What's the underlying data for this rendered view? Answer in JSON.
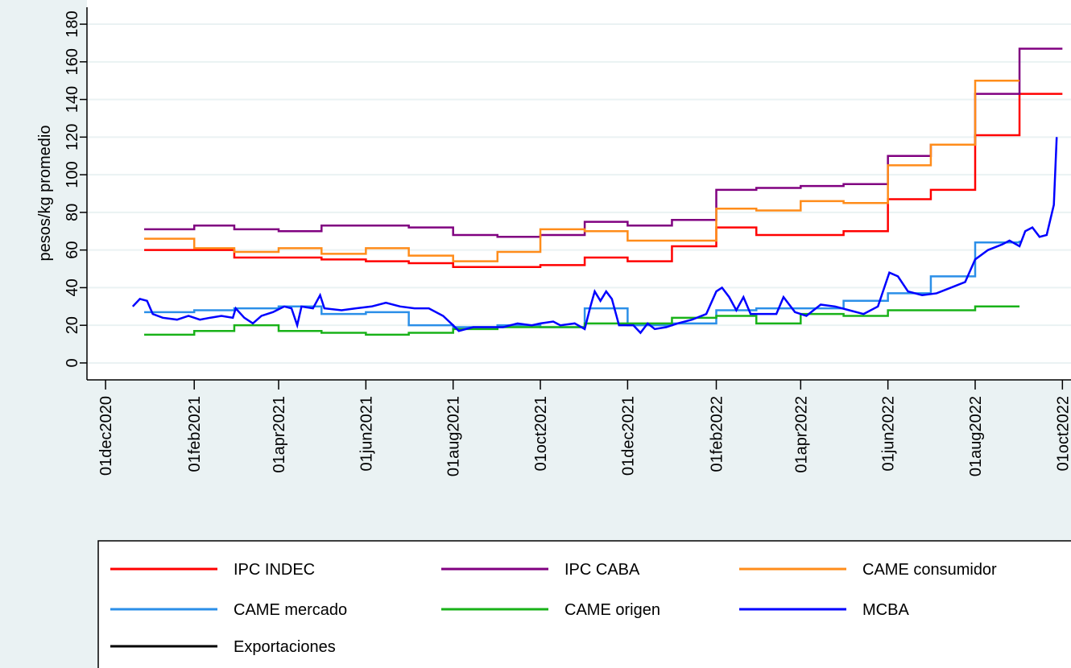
{
  "chart_data": {
    "type": "line",
    "y_label": "pesos/kg promedio",
    "xlim": [
      "2020-11-18",
      "2022-10-07"
    ],
    "xticks": [
      {
        "value": "2020-12-01",
        "label": "01dec2020"
      },
      {
        "value": "2021-02-01",
        "label": "01feb2021"
      },
      {
        "value": "2021-04-01",
        "label": "01apr2021"
      },
      {
        "value": "2021-06-01",
        "label": "01jun2021"
      },
      {
        "value": "2021-08-01",
        "label": "01aug2021"
      },
      {
        "value": "2021-10-01",
        "label": "01oct2021"
      },
      {
        "value": "2021-12-01",
        "label": "01dec2021"
      },
      {
        "value": "2022-02-01",
        "label": "01feb2022"
      },
      {
        "value": "2022-04-01",
        "label": "01apr2022"
      },
      {
        "value": "2022-06-01",
        "label": "01jun2022"
      },
      {
        "value": "2022-08-01",
        "label": "01aug2022"
      },
      {
        "value": "2022-10-01",
        "label": "01oct2022"
      }
    ],
    "ylim": [
      -9,
      189
    ],
    "yticks": [
      0,
      20,
      40,
      60,
      80,
      100,
      120,
      140,
      160,
      180
    ],
    "grid": true,
    "series": [
      {
        "name": "IPC INDEC",
        "color": "#ff0000",
        "step": true,
        "x": [
          "2020-12-28",
          "2021-03-01",
          "2021-04-01",
          "2021-05-01",
          "2021-06-01",
          "2021-07-01",
          "2021-08-01",
          "2021-09-01",
          "2021-10-01",
          "2021-11-01",
          "2021-12-01",
          "2022-01-01",
          "2022-02-01",
          "2022-03-01",
          "2022-04-01",
          "2022-05-01",
          "2022-06-01",
          "2022-07-01",
          "2022-08-01",
          "2022-09-01",
          "2022-10-01"
        ],
        "values": [
          60,
          56,
          56,
          55,
          54,
          53,
          51,
          51,
          52,
          56,
          54,
          62,
          72,
          68,
          68,
          70,
          87,
          92,
          121,
          143,
          143
        ]
      },
      {
        "name": "IPC CABA",
        "color": "#800080",
        "step": true,
        "x": [
          "2020-12-28",
          "2021-02-01",
          "2021-03-01",
          "2021-04-01",
          "2021-05-01",
          "2021-07-01",
          "2021-08-01",
          "2021-09-01",
          "2021-10-01",
          "2021-11-01",
          "2021-12-01",
          "2022-01-01",
          "2022-02-01",
          "2022-03-01",
          "2022-04-01",
          "2022-05-01",
          "2022-06-01",
          "2022-07-01",
          "2022-08-01",
          "2022-09-01",
          "2022-10-01"
        ],
        "values": [
          71,
          73,
          71,
          70,
          73,
          72,
          68,
          67,
          68,
          75,
          73,
          76,
          92,
          93,
          94,
          95,
          110,
          116,
          143,
          167,
          167
        ]
      },
      {
        "name": "CAME consumidor",
        "color": "#ff8c1a",
        "step": true,
        "x": [
          "2020-12-28",
          "2021-02-01",
          "2021-03-01",
          "2021-04-01",
          "2021-05-01",
          "2021-06-01",
          "2021-07-01",
          "2021-08-01",
          "2021-09-01",
          "2021-10-01",
          "2021-11-01",
          "2021-12-01",
          "2022-02-01",
          "2022-03-01",
          "2022-04-01",
          "2022-05-01",
          "2022-06-01",
          "2022-07-01",
          "2022-08-01",
          "2022-09-01"
        ],
        "values": [
          66,
          61,
          59,
          61,
          58,
          61,
          57,
          54,
          59,
          71,
          70,
          65,
          82,
          81,
          86,
          85,
          105,
          116,
          150,
          150
        ]
      },
      {
        "name": "CAME mercado",
        "color": "#2b8fe8",
        "step": true,
        "x": [
          "2020-12-28",
          "2021-02-01",
          "2021-03-01",
          "2021-04-01",
          "2021-05-01",
          "2021-06-01",
          "2021-07-01",
          "2021-08-01",
          "2021-09-01",
          "2021-10-01",
          "2021-11-01",
          "2021-12-01",
          "2022-01-01",
          "2022-02-01",
          "2022-03-01",
          "2022-04-01",
          "2022-05-01",
          "2022-06-01",
          "2022-07-01",
          "2022-08-01",
          "2022-09-01"
        ],
        "values": [
          27,
          28,
          29,
          30,
          26,
          27,
          20,
          19,
          20,
          19,
          29,
          20,
          21,
          28,
          29,
          29,
          33,
          37,
          46,
          64,
          65
        ]
      },
      {
        "name": "CAME origen",
        "color": "#19b219",
        "step": true,
        "x": [
          "2020-12-28",
          "2021-02-01",
          "2021-03-01",
          "2021-04-01",
          "2021-05-01",
          "2021-06-01",
          "2021-07-01",
          "2021-08-01",
          "2021-09-01",
          "2021-10-01",
          "2021-11-01",
          "2021-12-01",
          "2022-01-01",
          "2022-02-01",
          "2022-03-01",
          "2022-04-01",
          "2022-05-01",
          "2022-06-01",
          "2022-07-01",
          "2022-08-01",
          "2022-09-01"
        ],
        "values": [
          15,
          17,
          20,
          17,
          16,
          15,
          16,
          18,
          19,
          19,
          21,
          21,
          24,
          25,
          21,
          26,
          25,
          28,
          28,
          30,
          30
        ]
      },
      {
        "name": "MCBA",
        "color": "#0000ff",
        "step": false,
        "x": [
          "2020-12-20",
          "2020-12-25",
          "2020-12-30",
          "2021-01-03",
          "2021-01-10",
          "2021-01-20",
          "2021-01-28",
          "2021-02-05",
          "2021-02-12",
          "2021-02-20",
          "2021-02-28",
          "2021-03-02",
          "2021-03-08",
          "2021-03-14",
          "2021-03-20",
          "2021-03-28",
          "2021-04-05",
          "2021-04-10",
          "2021-04-14",
          "2021-04-17",
          "2021-04-25",
          "2021-04-30",
          "2021-05-03",
          "2021-05-15",
          "2021-05-25",
          "2021-06-05",
          "2021-06-15",
          "2021-06-25",
          "2021-07-05",
          "2021-07-15",
          "2021-07-25",
          "2021-08-01",
          "2021-08-05",
          "2021-08-15",
          "2021-08-25",
          "2021-09-05",
          "2021-09-15",
          "2021-09-25",
          "2021-10-01",
          "2021-10-10",
          "2021-10-15",
          "2021-10-25",
          "2021-11-01",
          "2021-11-05",
          "2021-11-08",
          "2021-11-12",
          "2021-11-16",
          "2021-11-20",
          "2021-11-25",
          "2021-12-05",
          "2021-12-10",
          "2021-12-15",
          "2021-12-20",
          "2021-12-28",
          "2022-01-05",
          "2022-01-15",
          "2022-01-25",
          "2022-02-01",
          "2022-02-05",
          "2022-02-10",
          "2022-02-15",
          "2022-02-20",
          "2022-02-25",
          "2022-03-10",
          "2022-03-15",
          "2022-03-20",
          "2022-03-28",
          "2022-04-05",
          "2022-04-15",
          "2022-04-25",
          "2022-05-05",
          "2022-05-15",
          "2022-05-25",
          "2022-06-02",
          "2022-06-08",
          "2022-06-15",
          "2022-06-25",
          "2022-07-05",
          "2022-07-15",
          "2022-07-25",
          "2022-08-01",
          "2022-08-10",
          "2022-08-20",
          "2022-08-25",
          "2022-09-01",
          "2022-09-05",
          "2022-09-10",
          "2022-09-15",
          "2022-09-20",
          "2022-09-25",
          "2022-09-27"
        ],
        "values": [
          30,
          34,
          33,
          26,
          24,
          23,
          25,
          23,
          24,
          25,
          24,
          29,
          24,
          21,
          25,
          27,
          30,
          29,
          20,
          30,
          29,
          36,
          29,
          28,
          29,
          30,
          32,
          30,
          29,
          29,
          25,
          20,
          17,
          19,
          19,
          19,
          21,
          20,
          21,
          22,
          20,
          21,
          18,
          30,
          38,
          33,
          38,
          34,
          20,
          20,
          16,
          21,
          18,
          19,
          21,
          23,
          26,
          38,
          40,
          35,
          28,
          35,
          26,
          26,
          26,
          35,
          27,
          25,
          31,
          30,
          28,
          26,
          30,
          48,
          46,
          38,
          36,
          37,
          40,
          43,
          55,
          60,
          63,
          65,
          62,
          70,
          72,
          67,
          68,
          84,
          120
        ]
      },
      {
        "name": "Exportaciones",
        "color": "#000000",
        "step": false,
        "x": [],
        "values": []
      }
    ],
    "legend": "bottom"
  }
}
